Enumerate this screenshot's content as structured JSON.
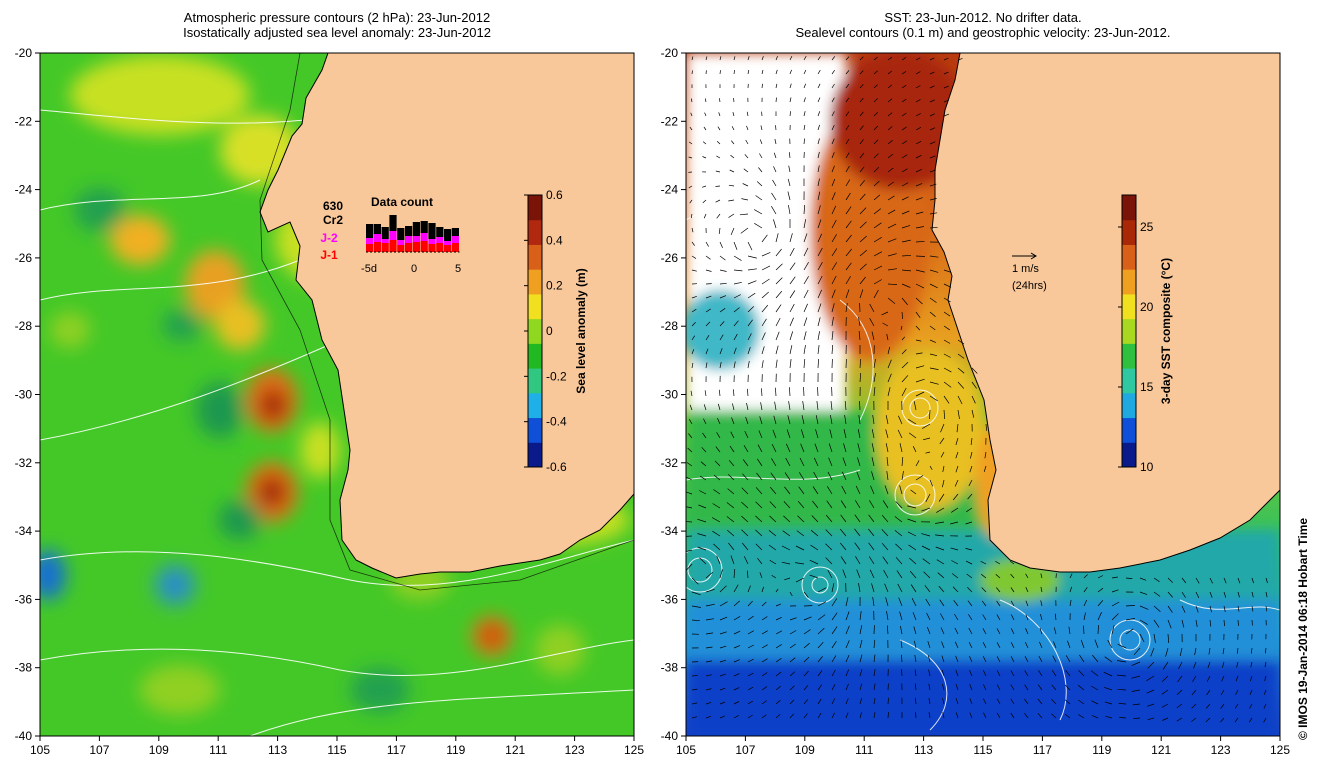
{
  "left_panel": {
    "title_line1": "Atmospheric pressure contours (2 hPa): 23-Jun-2012",
    "title_line2": "Isostatically adjusted sea level anomaly: 23-Jun-2012",
    "colorbar": {
      "label": "Sea level anomaly (m)",
      "ticks": [
        "0.6",
        "0.4",
        "0.2",
        "0",
        "-0.2",
        "-0.4",
        "-0.6"
      ],
      "colors": [
        "#0a1a8a",
        "#1050d8",
        "#20b0e8",
        "#30c880",
        "#22b822",
        "#90d820",
        "#f0e020",
        "#f0a020",
        "#d86018",
        "#b02810",
        "#7a1408"
      ]
    },
    "data_count": {
      "title": "Data count",
      "total": "630",
      "sat1": "Cr2",
      "sat2": "J-2",
      "sat3": "J-1",
      "xticks": [
        "-5d",
        "0",
        "5"
      ]
    }
  },
  "right_panel": {
    "title_line1": "SST: 23-Jun-2012. No drifter data.",
    "title_line2": "Sealevel contours (0.1 m) and geostrophic velocity: 23-Jun-2012.",
    "colorbar": {
      "label": "3-day SST composite (°C)",
      "ticks": [
        "25",
        "20",
        "15",
        "10"
      ],
      "colors": [
        "#0a1a8a",
        "#1050d8",
        "#20a8e0",
        "#30c8a0",
        "#30c040",
        "#a8d820",
        "#f0e020",
        "#f0a020",
        "#d86018",
        "#a82808",
        "#7a1408"
      ]
    },
    "velocity_legend": {
      "speed": "1 m/s",
      "period": "(24hrs)"
    }
  },
  "axes": {
    "x_ticks": [
      "105",
      "107",
      "109",
      "111",
      "113",
      "115",
      "117",
      "119",
      "121",
      "123",
      "125"
    ],
    "y_ticks": [
      "-20",
      "-22",
      "-24",
      "-26",
      "-28",
      "-30",
      "-32",
      "-34",
      "-36",
      "-38",
      "-40"
    ]
  },
  "credit": "© IMOS 19-Jan-2014 06:18 Hobart Time",
  "colors": {
    "land": "#f9c89a",
    "ocean_green": "#44cc22"
  }
}
